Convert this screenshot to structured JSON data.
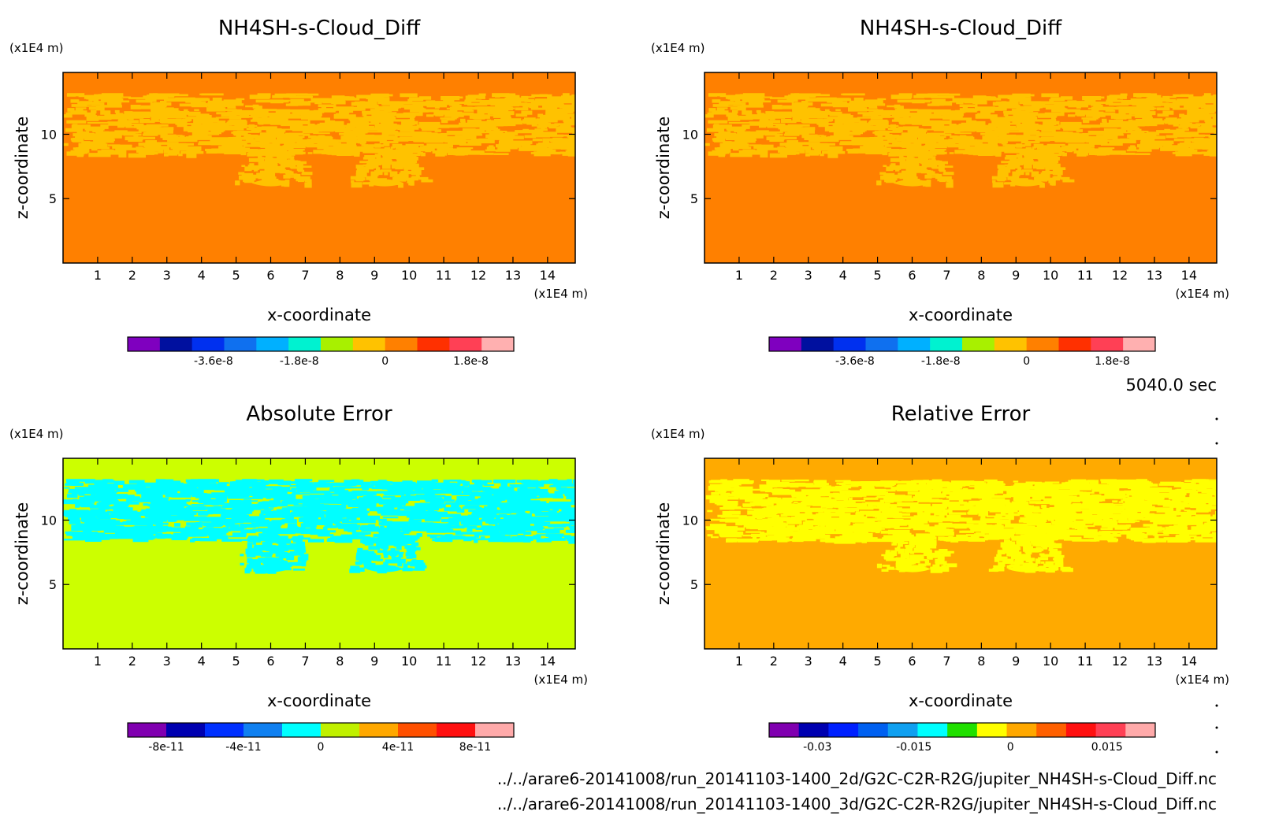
{
  "time_label": "5040.0 sec",
  "footer_paths": [
    "../../arare6-20141008/run_20141103-1400_2d/G2C-C2R-R2G/jupiter_NH4SH-s-Cloud_Diff.nc",
    "../../arare6-20141008/run_20141103-1400_3d/G2C-C2R-R2G/jupiter_NH4SH-s-Cloud_Diff.nc"
  ],
  "chart_data": [
    {
      "type": "heatmap",
      "title": "NH4SH-s-Cloud_Diff",
      "xlabel": "x-coordinate",
      "ylabel": "z-coordinate",
      "x_unit": "(x1E4 m)",
      "y_unit": "(x1E4 m)",
      "xlim": [
        0,
        14.8
      ],
      "ylim": [
        0,
        14.8
      ],
      "x_ticks": [
        1,
        2,
        3,
        4,
        5,
        6,
        7,
        8,
        9,
        10,
        11,
        12,
        13,
        14
      ],
      "y_ticks": [
        5,
        10
      ],
      "colorbar": {
        "colors": [
          "#7f00bf",
          "#00109f",
          "#0030ef",
          "#0f70ef",
          "#00b0ff",
          "#00f2d0",
          "#a8f000",
          "#ffc200",
          "#ff8000",
          "#ff3000",
          "#ff4055",
          "#ffb0b0"
        ],
        "tick_values": [
          -3.6e-08,
          -1.8e-08,
          0,
          1.8e-08
        ],
        "tick_labels": [
          "-3.6e-8",
          "-1.8e-8",
          "0",
          "1.8e-8"
        ],
        "range": [
          -5.4e-08,
          2.7e-08
        ]
      },
      "field": {
        "background_color": "#ff8000",
        "pattern_color": "#ffc200",
        "layer_z": [
          8.5,
          13.2
        ],
        "plumes_x": [
          6.0,
          9.3
        ],
        "plume_base_z": 6.2
      }
    },
    {
      "type": "heatmap",
      "title": "NH4SH-s-Cloud_Diff",
      "xlabel": "x-coordinate",
      "ylabel": "z-coordinate",
      "x_unit": "(x1E4 m)",
      "y_unit": "(x1E4 m)",
      "xlim": [
        0,
        14.8
      ],
      "ylim": [
        0,
        14.8
      ],
      "x_ticks": [
        1,
        2,
        3,
        4,
        5,
        6,
        7,
        8,
        9,
        10,
        11,
        12,
        13,
        14
      ],
      "y_ticks": [
        5,
        10
      ],
      "colorbar": {
        "colors": [
          "#7f00bf",
          "#00109f",
          "#0030ef",
          "#0f70ef",
          "#00b0ff",
          "#00f2d0",
          "#a8f000",
          "#ffc200",
          "#ff8000",
          "#ff3000",
          "#ff4055",
          "#ffb0b0"
        ],
        "tick_values": [
          -3.6e-08,
          -1.8e-08,
          0,
          1.8e-08
        ],
        "tick_labels": [
          "-3.6e-8",
          "-1.8e-8",
          "0",
          "1.8e-8"
        ],
        "range": [
          -5.4e-08,
          2.7e-08
        ]
      },
      "field": {
        "background_color": "#ff8000",
        "pattern_color": "#ffc200",
        "layer_z": [
          8.5,
          13.2
        ],
        "plumes_x": [
          6.0,
          9.3
        ],
        "plume_base_z": 6.2
      }
    },
    {
      "type": "heatmap",
      "title": "Absolute Error",
      "xlabel": "x-coordinate",
      "ylabel": "z-coordinate",
      "x_unit": "(x1E4 m)",
      "y_unit": "(x1E4 m)",
      "xlim": [
        0,
        14.8
      ],
      "ylim": [
        0,
        14.8
      ],
      "x_ticks": [
        1,
        2,
        3,
        4,
        5,
        6,
        7,
        8,
        9,
        10,
        11,
        12,
        13,
        14
      ],
      "y_ticks": [
        5,
        10
      ],
      "colorbar": {
        "colors": [
          "#8000b0",
          "#0000b0",
          "#0030ff",
          "#1080f0",
          "#00ffff",
          "#c0f000",
          "#ffa800",
          "#ff5000",
          "#ff1010",
          "#ffaaaa"
        ],
        "tick_values": [
          -8e-11,
          -4e-11,
          0,
          4e-11,
          8e-11
        ],
        "tick_labels": [
          "-8e-11",
          "-4e-11",
          "0",
          "4e-11",
          "8e-11"
        ],
        "range": [
          -1e-10,
          1e-10
        ]
      },
      "field": {
        "background_color": "#ccff00",
        "pattern_color": "#00ffff",
        "layer_z": [
          8.5,
          13.2
        ],
        "plumes_x": [
          6.0,
          9.3
        ],
        "plume_base_z": 6.2
      }
    },
    {
      "type": "heatmap",
      "title": "Relative Error",
      "xlabel": "x-coordinate",
      "ylabel": "z-coordinate",
      "x_unit": "(x1E4 m)",
      "y_unit": "(x1E4 m)",
      "xlim": [
        0,
        14.8
      ],
      "ylim": [
        0,
        14.8
      ],
      "x_ticks": [
        1,
        2,
        3,
        4,
        5,
        6,
        7,
        8,
        9,
        10,
        11,
        12,
        13,
        14
      ],
      "y_ticks": [
        5,
        10
      ],
      "colorbar": {
        "colors": [
          "#8000b0",
          "#0000b0",
          "#0020ff",
          "#0060f0",
          "#10a0f0",
          "#00ffff",
          "#20e000",
          "#ffff00",
          "#ffa800",
          "#ff6000",
          "#ff1010",
          "#ff4055",
          "#ffaaaa"
        ],
        "tick_values": [
          -0.03,
          -0.015,
          0,
          0.015
        ],
        "tick_labels": [
          "-0.03",
          "-0.015",
          "0",
          "0.015"
        ],
        "range": [
          -0.0375,
          0.0225
        ]
      },
      "field": {
        "background_color": "#ffaa00",
        "pattern_color": "#ffff00",
        "layer_z": [
          8.5,
          13.2
        ],
        "plumes_x": [
          6.0,
          9.3
        ],
        "plume_base_z": 6.2
      }
    }
  ]
}
